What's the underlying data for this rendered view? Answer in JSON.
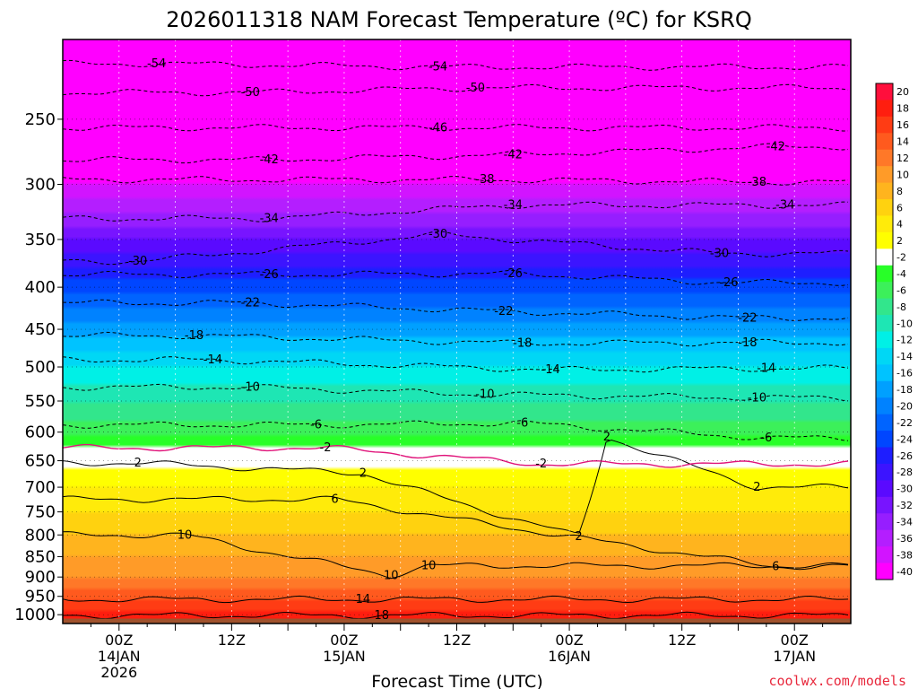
{
  "chart_data": {
    "type": "heatmap",
    "title": "2026011318 NAM Forecast Temperature (ºC) for KSRQ",
    "xlabel": "Forecast Time (UTC)",
    "ylabel": "",
    "units": "°C",
    "y_ticks": [
      "250",
      "300",
      "350",
      "400",
      "450",
      "500",
      "550",
      "600",
      "650",
      "700",
      "750",
      "800",
      "850",
      "900",
      "950",
      "1000"
    ],
    "y_tick_values": [
      250,
      300,
      350,
      400,
      450,
      500,
      550,
      600,
      650,
      700,
      750,
      800,
      850,
      900,
      950,
      1000
    ],
    "ylim": [
      200,
      1025
    ],
    "y_scale": "log",
    "x_ticks": [
      {
        "h": 6,
        "lines": [
          "00Z",
          "14JAN",
          "2026"
        ]
      },
      {
        "h": 18,
        "lines": [
          "12Z"
        ]
      },
      {
        "h": 30,
        "lines": [
          "00Z",
          "15JAN"
        ]
      },
      {
        "h": 42,
        "lines": [
          "12Z"
        ]
      },
      {
        "h": 54,
        "lines": [
          "00Z",
          "16JAN"
        ]
      },
      {
        "h": 66,
        "lines": [
          "12Z"
        ]
      },
      {
        "h": 78,
        "lines": [
          "00Z",
          "17JAN"
        ]
      }
    ],
    "xlim": [
      0,
      84
    ],
    "grid": true,
    "colorbar": {
      "levels": [
        "20",
        "18",
        "16",
        "14",
        "12",
        "10",
        "8",
        "6",
        "4",
        "2",
        "-2",
        "-4",
        "-6",
        "-8",
        "-10",
        "-12",
        "-14",
        "-16",
        "-18",
        "-20",
        "-22",
        "-24",
        "-26",
        "-28",
        "-30",
        "-32",
        "-34",
        "-36",
        "-38",
        "-40"
      ],
      "colors": [
        "#ff0f3c",
        "#ff1e0f",
        "#ff3c14",
        "#ff5a1e",
        "#ff7828",
        "#ff9b28",
        "#ffb41e",
        "#ffd20f",
        "#ffeb0a",
        "#ffff00",
        "#ffffff",
        "#28ff28",
        "#3cf05a",
        "#32e68c",
        "#1ee6b4",
        "#00f0e6",
        "#00d7f5",
        "#00c3ff",
        "#00a0ff",
        "#0082ff",
        "#0064ff",
        "#0046ff",
        "#1e1eff",
        "#3c14ff",
        "#5a0aff",
        "#7814ff",
        "#961eff",
        "#b41eff",
        "#d214ff",
        "#ff00ff"
      ]
    },
    "temperature_profile": [
      {
        "p": 1000,
        "t": 19
      },
      {
        "p": 950,
        "t": 15
      },
      {
        "p": 900,
        "t": 12
      },
      {
        "p": 850,
        "t": 10
      },
      {
        "p": 800,
        "t": 8
      },
      {
        "p": 750,
        "t": 6
      },
      {
        "p": 700,
        "t": 4
      },
      {
        "p": 650,
        "t": 1
      },
      {
        "p": 600,
        "t": -5
      },
      {
        "p": 550,
        "t": -8
      },
      {
        "p": 500,
        "t": -12
      },
      {
        "p": 450,
        "t": -17
      },
      {
        "p": 400,
        "t": -23
      },
      {
        "p": 350,
        "t": -30
      },
      {
        "p": 300,
        "t": -38
      },
      {
        "p": 250,
        "t": -46
      },
      {
        "p": 200,
        "t": -56
      }
    ],
    "contour_labels": [
      {
        "text": "-54",
        "h": 10,
        "p": 214
      },
      {
        "text": "-54",
        "h": 40,
        "p": 216
      },
      {
        "text": "-50",
        "h": 20,
        "p": 232
      },
      {
        "text": "-50",
        "h": 44,
        "p": 229
      },
      {
        "text": "-46",
        "h": 40,
        "p": 256
      },
      {
        "text": "-42",
        "h": 22,
        "p": 280
      },
      {
        "text": "-42",
        "h": 48,
        "p": 276
      },
      {
        "text": "-42",
        "h": 76,
        "p": 270
      },
      {
        "text": "-38",
        "h": 45,
        "p": 296
      },
      {
        "text": "-38",
        "h": 74,
        "p": 298
      },
      {
        "text": "-34",
        "h": 22,
        "p": 330
      },
      {
        "text": "-34",
        "h": 48,
        "p": 318
      },
      {
        "text": "-34",
        "h": 77,
        "p": 318
      },
      {
        "text": "-30",
        "h": 8,
        "p": 372
      },
      {
        "text": "-30",
        "h": 40,
        "p": 345
      },
      {
        "text": "-30",
        "h": 70,
        "p": 364
      },
      {
        "text": "-26",
        "h": 22,
        "p": 386
      },
      {
        "text": "-26",
        "h": 48,
        "p": 385
      },
      {
        "text": "-26",
        "h": 71,
        "p": 395
      },
      {
        "text": "-22",
        "h": 20,
        "p": 418
      },
      {
        "text": "-22",
        "h": 47,
        "p": 428
      },
      {
        "text": "-22",
        "h": 73,
        "p": 436
      },
      {
        "text": "-18",
        "h": 14,
        "p": 458
      },
      {
        "text": "-18",
        "h": 49,
        "p": 468
      },
      {
        "text": "-18",
        "h": 73,
        "p": 467
      },
      {
        "text": "-14",
        "h": 16,
        "p": 490
      },
      {
        "text": "-14",
        "h": 52,
        "p": 504
      },
      {
        "text": "-14",
        "h": 75,
        "p": 502
      },
      {
        "text": "-10",
        "h": 20,
        "p": 529
      },
      {
        "text": "-10",
        "h": 45,
        "p": 540
      },
      {
        "text": "-10",
        "h": 74,
        "p": 545
      },
      {
        "text": "-6",
        "h": 27,
        "p": 588
      },
      {
        "text": "-6",
        "h": 49,
        "p": 585
      },
      {
        "text": "-6",
        "h": 75,
        "p": 610
      },
      {
        "text": "-2",
        "h": 28,
        "p": 627
      },
      {
        "text": "-2",
        "h": 51,
        "p": 656
      },
      {
        "text": "2",
        "h": 8,
        "p": 654
      },
      {
        "text": "2",
        "h": 32,
        "p": 673
      },
      {
        "text": "2",
        "h": 74,
        "p": 700
      },
      {
        "text": "2",
        "h": 58,
        "p": 608
      },
      {
        "text": "2",
        "h": 55,
        "p": 803
      },
      {
        "text": "6",
        "h": 29,
        "p": 724
      },
      {
        "text": "6",
        "h": 76,
        "p": 874
      },
      {
        "text": "10",
        "h": 13,
        "p": 800
      },
      {
        "text": "10",
        "h": 39,
        "p": 872
      },
      {
        "text": "10",
        "h": 35,
        "p": 896
      },
      {
        "text": "14",
        "h": 32,
        "p": 958
      },
      {
        "text": "18",
        "h": 34,
        "p": 1002
      }
    ]
  },
  "credit": "coolwx.com/models",
  "colors": {
    "ground": "#a0522d",
    "freezing_contour": "#e0147a",
    "credit": "#e8283c"
  }
}
